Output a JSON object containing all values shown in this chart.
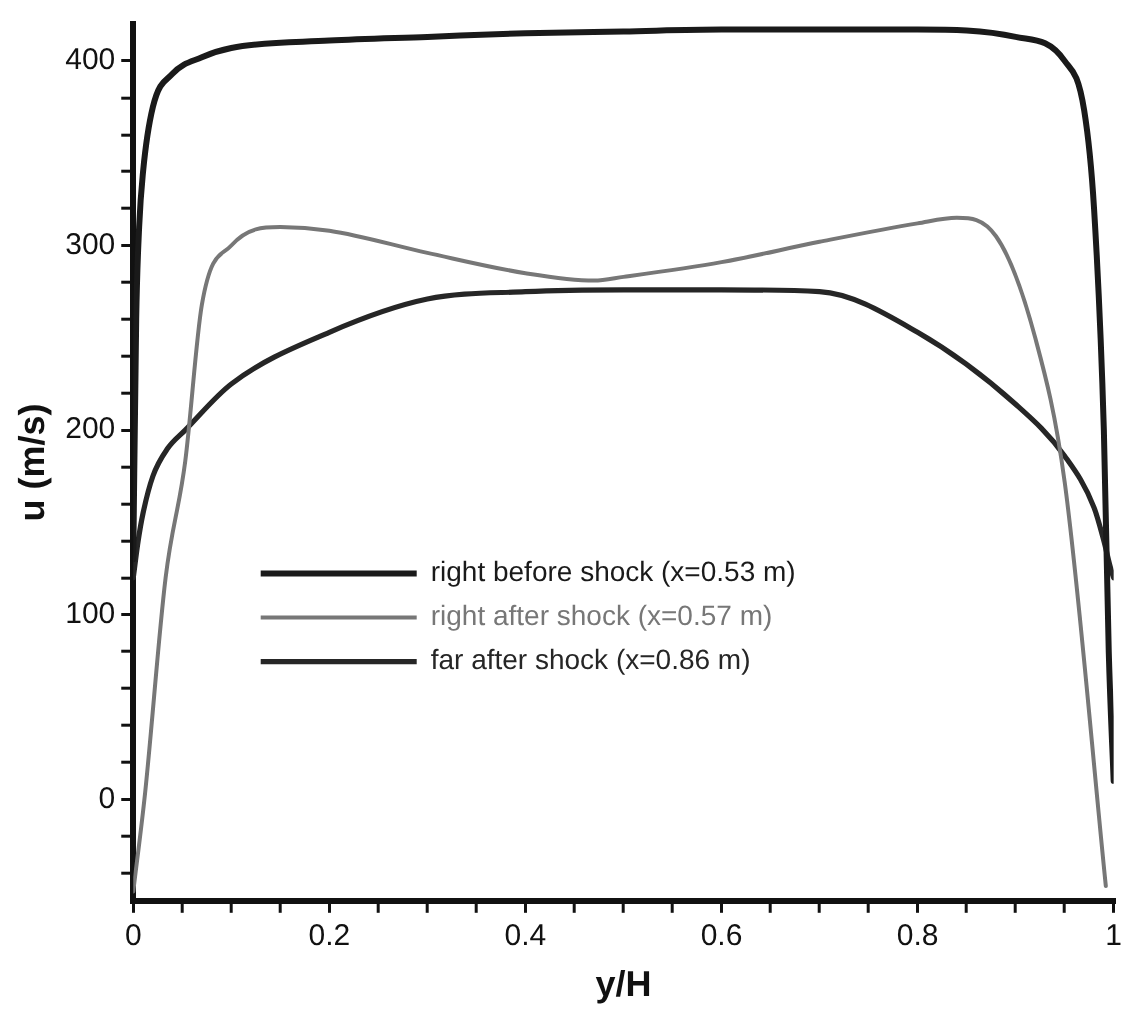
{
  "chart_data": {
    "type": "line",
    "xlabel": "y/H",
    "ylabel": "u (m/s)",
    "xlim": [
      0,
      1
    ],
    "ylim": [
      -55,
      420
    ],
    "xticks": [
      0,
      {
        "value": 0.05,
        "label": null
      },
      {
        "value": 0.1,
        "label": null
      },
      {
        "value": 0.15,
        "label": null
      },
      0.2,
      {
        "value": 0.25,
        "label": null
      },
      {
        "value": 0.3,
        "label": null
      },
      {
        "value": 0.35,
        "label": null
      },
      0.4,
      {
        "value": 0.45,
        "label": null
      },
      {
        "value": 0.5,
        "label": null
      },
      {
        "value": 0.55,
        "label": null
      },
      0.6,
      {
        "value": 0.65,
        "label": null
      },
      {
        "value": 0.7,
        "label": null
      },
      {
        "value": 0.75,
        "label": null
      },
      0.8,
      {
        "value": 0.85,
        "label": null
      },
      {
        "value": 0.9,
        "label": null
      },
      {
        "value": 0.95,
        "label": null
      },
      1
    ],
    "yticks": [
      {
        "value": -40,
        "label": null
      },
      {
        "value": -20,
        "label": null
      },
      0,
      {
        "value": 20,
        "label": null
      },
      {
        "value": 40,
        "label": null
      },
      {
        "value": 60,
        "label": null
      },
      {
        "value": 80,
        "label": null
      },
      100,
      {
        "value": 120,
        "label": null
      },
      {
        "value": 140,
        "label": null
      },
      {
        "value": 160,
        "label": null
      },
      {
        "value": 180,
        "label": null
      },
      200,
      {
        "value": 220,
        "label": null
      },
      {
        "value": 240,
        "label": null
      },
      {
        "value": 260,
        "label": null
      },
      {
        "value": 280,
        "label": null
      },
      300,
      {
        "value": 320,
        "label": null
      },
      {
        "value": 340,
        "label": null
      },
      {
        "value": 360,
        "label": null
      },
      {
        "value": 380,
        "label": null
      },
      400
    ],
    "grid": false,
    "legend": "left",
    "marker": "none",
    "line_style": "solid",
    "series": [
      {
        "name": "right before shock (x=0.53 m)",
        "color": "#1a1a1a",
        "x": [
          0,
          0.003,
          0.006,
          0.01,
          0.02,
          0.04,
          0.07,
          0.1,
          0.2,
          0.3,
          0.4,
          0.5,
          0.6,
          0.7,
          0.8,
          0.9,
          0.95,
          0.97,
          0.98,
          0.99,
          0.995,
          1
        ],
        "values": [
          130,
          260,
          310,
          340,
          375,
          393,
          402,
          407,
          411,
          413,
          415,
          416,
          417,
          417,
          417,
          413,
          400,
          373,
          320,
          200,
          80,
          10
        ]
      },
      {
        "name": "right after shock (x=0.57 m)",
        "color": "#777777",
        "x": [
          0,
          0.012,
          0.033,
          0.053,
          0.07,
          0.1,
          0.15,
          0.2,
          0.3,
          0.4,
          0.47,
          0.5,
          0.6,
          0.7,
          0.8,
          0.84,
          0.88,
          0.92,
          0.95,
          0.992
        ],
        "values": [
          -50,
          3,
          120,
          183,
          268,
          300,
          310,
          308,
          296,
          285,
          281,
          283,
          291,
          302,
          312,
          315,
          305,
          250,
          172,
          -47
        ]
      },
      {
        "name": "far after shock (x=0.86 m)",
        "color": "#262626",
        "x": [
          0,
          0.005,
          0.01,
          0.02,
          0.035,
          0.053,
          0.1,
          0.2,
          0.3,
          0.4,
          0.5,
          0.6,
          0.7,
          0.8,
          0.9,
          0.95,
          0.98,
          0.99,
          0.997,
          1
        ],
        "values": [
          120,
          140,
          155,
          175,
          190,
          200,
          225,
          253,
          271,
          275,
          276,
          276,
          275,
          253,
          214,
          186,
          158,
          140,
          125,
          120
        ]
      }
    ]
  }
}
